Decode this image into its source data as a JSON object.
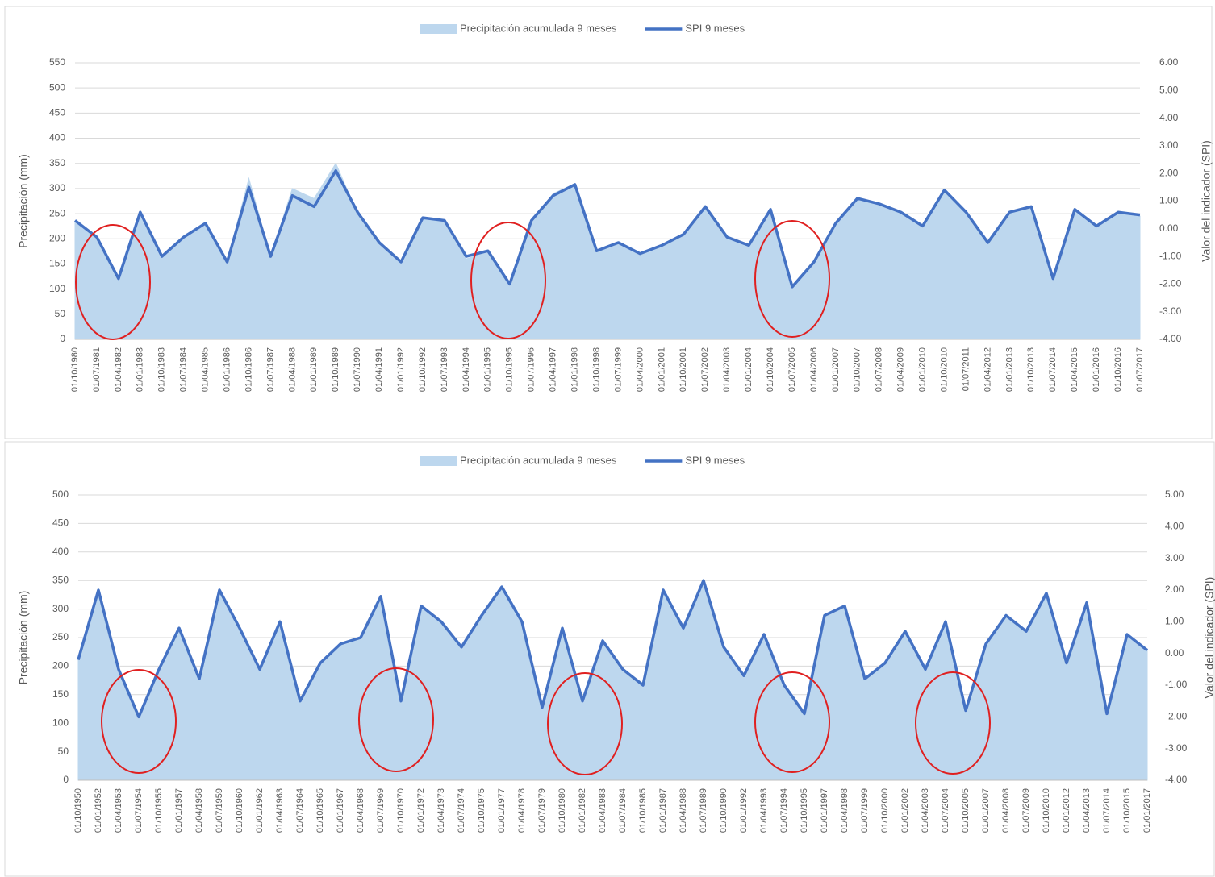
{
  "chart_data": [
    {
      "type": "line",
      "ylabel": "Precipitación (mm)",
      "y2label": "Valor del indicador (SPI)",
      "categories": [
        "01/10/1980",
        "01/07/1981",
        "01/04/1982",
        "01/01/1983",
        "01/10/1983",
        "01/07/1984",
        "01/04/1985",
        "01/01/1986",
        "01/10/1986",
        "01/07/1987",
        "01/04/1988",
        "01/01/1989",
        "01/10/1989",
        "01/07/1990",
        "01/04/1991",
        "01/01/1992",
        "01/10/1992",
        "01/07/1993",
        "01/04/1994",
        "01/01/1995",
        "01/10/1995",
        "01/07/1996",
        "01/04/1997",
        "01/01/1998",
        "01/10/1998",
        "01/07/1999",
        "01/04/2000",
        "01/01/2001",
        "01/10/2001",
        "01/07/2002",
        "01/04/2003",
        "01/01/2004",
        "01/10/2004",
        "01/07/2005",
        "01/04/2006",
        "01/01/2007",
        "01/10/2007",
        "01/07/2008",
        "01/04/2009",
        "01/01/2010",
        "01/10/2010",
        "01/07/2011",
        "01/04/2012",
        "01/01/2013",
        "01/10/2013",
        "01/07/2014",
        "01/04/2015",
        "01/01/2016",
        "01/10/2016",
        "01/07/2017"
      ],
      "series": [
        {
          "name": "Precipitación acumulada 9 meses",
          "type": "area",
          "color": "#bdd7ee",
          "values": [
            235,
            200,
            120,
            250,
            165,
            200,
            230,
            155,
            320,
            165,
            300,
            280,
            350,
            250,
            190,
            150,
            240,
            235,
            160,
            175,
            105,
            235,
            290,
            310,
            175,
            190,
            170,
            185,
            210,
            265,
            200,
            185,
            260,
            105,
            155,
            230,
            280,
            270,
            250,
            225,
            300,
            255,
            190,
            250,
            265,
            120,
            255,
            225,
            250,
            245
          ]
        },
        {
          "name": "SPI 9 meses",
          "type": "line",
          "axis": "y2",
          "color": "#4472c4",
          "values": [
            0.3,
            -0.3,
            -1.8,
            0.6,
            -1.0,
            -0.3,
            0.2,
            -1.2,
            1.5,
            -1.0,
            1.2,
            0.8,
            2.1,
            0.6,
            -0.5,
            -1.2,
            0.4,
            0.3,
            -1.0,
            -0.8,
            -2.0,
            0.3,
            1.2,
            1.6,
            -0.8,
            -0.5,
            -0.9,
            -0.6,
            -0.2,
            0.8,
            -0.3,
            -0.6,
            0.7,
            -2.1,
            -1.2,
            0.2,
            1.1,
            0.9,
            0.6,
            0.1,
            1.4,
            0.6,
            -0.5,
            0.6,
            0.8,
            -1.8,
            0.7,
            0.1,
            0.6,
            0.5
          ]
        }
      ],
      "ylim": [
        0,
        550
      ],
      "yticks": [
        0,
        50,
        100,
        150,
        200,
        250,
        300,
        350,
        400,
        450,
        500,
        550
      ],
      "y2lim": [
        -4,
        6
      ],
      "y2ticks": [
        {
          "value": -4,
          "label": "-4.00"
        },
        {
          "value": -3,
          "label": "-3.00"
        },
        {
          "value": -2,
          "label": "-2.00"
        },
        {
          "value": -1,
          "label": "-1.00"
        },
        {
          "value": 0,
          "label": "0.00"
        },
        {
          "value": 1,
          "label": "1.00"
        },
        {
          "value": 2,
          "label": "2.00"
        },
        {
          "value": 3,
          "label": "3.00"
        },
        {
          "value": 4,
          "label": "4.00"
        },
        {
          "value": 5,
          "label": "5.00"
        },
        {
          "value": 6,
          "label": "6.00"
        }
      ],
      "grid": true
    },
    {
      "type": "line",
      "ylabel": "Precipitación (mm)",
      "y2label": "Valor del indicador (SPI)",
      "categories": [
        "01/10/1950",
        "01/01/1952",
        "01/04/1953",
        "01/07/1954",
        "01/10/1955",
        "01/01/1957",
        "01/04/1958",
        "01/07/1959",
        "01/10/1960",
        "01/01/1962",
        "01/04/1963",
        "01/07/1964",
        "01/10/1965",
        "01/01/1967",
        "01/04/1968",
        "01/07/1969",
        "01/10/1970",
        "01/01/1972",
        "01/04/1973",
        "01/07/1974",
        "01/10/1975",
        "01/01/1977",
        "01/04/1978",
        "01/07/1979",
        "01/10/1980",
        "01/01/1982",
        "01/04/1983",
        "01/07/1984",
        "01/10/1985",
        "01/01/1987",
        "01/04/1988",
        "01/07/1989",
        "01/10/1990",
        "01/01/1992",
        "01/04/1993",
        "01/07/1994",
        "01/10/1995",
        "01/01/1997",
        "01/04/1998",
        "01/07/1999",
        "01/10/2000",
        "01/01/2002",
        "01/04/2003",
        "01/07/2004",
        "01/10/2005",
        "01/01/2007",
        "01/04/2008",
        "01/07/2009",
        "01/10/2010",
        "01/01/2012",
        "01/04/2013",
        "01/07/2014",
        "01/10/2015",
        "01/01/2017"
      ],
      "series": [
        {
          "name": "Precipitación acumulada 9 meses",
          "type": "area",
          "color": "#bdd7ee",
          "values": [
            210,
            335,
            195,
            110,
            195,
            265,
            180,
            335,
            265,
            195,
            280,
            140,
            205,
            240,
            250,
            320,
            140,
            305,
            280,
            235,
            290,
            340,
            280,
            130,
            265,
            140,
            245,
            195,
            170,
            335,
            265,
            350,
            235,
            185,
            255,
            170,
            120,
            290,
            305,
            180,
            205,
            260,
            195,
            280,
            125,
            240,
            290,
            260,
            325,
            205,
            310,
            120,
            255,
            230
          ]
        },
        {
          "name": "SPI 9 meses",
          "type": "line",
          "axis": "y2",
          "color": "#4472c4",
          "values": [
            -0.2,
            2.0,
            -0.5,
            -2.0,
            -0.5,
            0.8,
            -0.8,
            2.0,
            0.8,
            -0.5,
            1.0,
            -1.5,
            -0.3,
            0.3,
            0.5,
            1.8,
            -1.5,
            1.5,
            1.0,
            0.2,
            1.2,
            2.1,
            1.0,
            -1.7,
            0.8,
            -1.5,
            0.4,
            -0.5,
            -1.0,
            2.0,
            0.8,
            2.3,
            0.2,
            -0.7,
            0.6,
            -1.0,
            -1.9,
            1.2,
            1.5,
            -0.8,
            -0.3,
            0.7,
            -0.5,
            1.0,
            -1.8,
            0.3,
            1.2,
            0.7,
            1.9,
            -0.3,
            1.6,
            -1.9,
            0.6,
            0.1
          ]
        }
      ],
      "ylim": [
        0,
        500
      ],
      "yticks": [
        0,
        50,
        100,
        150,
        200,
        250,
        300,
        350,
        400,
        450,
        500
      ],
      "y2lim": [
        -4,
        5
      ],
      "y2ticks": [
        {
          "value": -4,
          "label": "-4.00"
        },
        {
          "value": -3,
          "label": "-3.00"
        },
        {
          "value": -2,
          "label": "-2.00"
        },
        {
          "value": -1,
          "label": "-1.00"
        },
        {
          "value": 0,
          "label": "0.00"
        },
        {
          "value": 1,
          "label": "1.00"
        },
        {
          "value": 2,
          "label": "2.00"
        },
        {
          "value": 3,
          "label": "3.00"
        },
        {
          "value": 4,
          "label": "4.00"
        },
        {
          "value": 5,
          "label": "5.00"
        }
      ],
      "grid": true
    }
  ]
}
